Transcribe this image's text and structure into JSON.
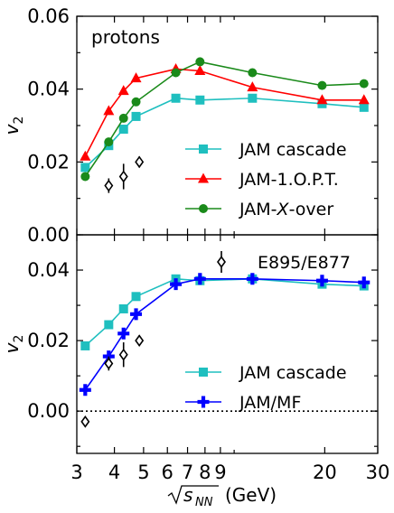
{
  "chart_data": {
    "type": "line",
    "x_scale": "log",
    "xlim": [
      3,
      30
    ],
    "x_ticks": [
      3,
      4,
      5,
      6,
      7,
      8,
      9,
      20,
      30
    ],
    "x_tick_labels": [
      "3",
      "4",
      "5",
      "6",
      "7",
      "8",
      "9",
      "20",
      "30"
    ],
    "xlabel": "(GeV)",
    "xlabel_symbol": "sNN",
    "panels": [
      {
        "id": "top",
        "label": "protons",
        "ylabel": "v2",
        "ylim": [
          0.0,
          0.06
        ],
        "y_ticks": [
          0.0,
          0.02,
          0.04,
          0.06
        ],
        "y_tick_labels": [
          "0.00",
          "0.02",
          "0.04",
          "0.06"
        ],
        "legend": "right",
        "series": [
          {
            "name": "JAM cascade",
            "marker": "square",
            "color": "#1fbfbf",
            "x": [
              3.2,
              3.83,
              4.29,
              4.72,
              6.4,
              7.7,
              11.5,
              19.6,
              27
            ],
            "y": [
              0.0185,
              0.0245,
              0.029,
              0.0325,
              0.0375,
              0.037,
              0.0375,
              0.036,
              0.035
            ]
          },
          {
            "name": "JAM-1.O.P.T.",
            "marker": "triangle",
            "color": "#ff0000",
            "x": [
              3.2,
              3.83,
              4.29,
              4.72,
              6.4,
              7.7,
              11.5,
              19.6,
              27
            ],
            "y": [
              0.0215,
              0.034,
              0.0395,
              0.043,
              0.0455,
              0.045,
              0.0405,
              0.037,
              0.037
            ]
          },
          {
            "name": "JAM-X-over",
            "marker": "circle",
            "color": "#1a8a1a",
            "x": [
              3.2,
              3.83,
              4.29,
              4.72,
              6.4,
              7.7,
              11.5,
              19.6,
              27
            ],
            "y": [
              0.016,
              0.0255,
              0.032,
              0.0365,
              0.0445,
              0.0475,
              0.0445,
              0.041,
              0.0415
            ]
          },
          {
            "name": "E895/E877",
            "marker": "open-diamond",
            "color": "#000000",
            "errorbars": true,
            "x": [
              3.83,
              4.29,
              4.84
            ],
            "y": [
              0.0135,
              0.016,
              0.02
            ],
            "err": [
              0.002,
              0.0035,
              0.0015
            ]
          }
        ]
      },
      {
        "id": "bottom",
        "label": "",
        "ylabel": "v2",
        "ylim": [
          -0.012,
          0.05
        ],
        "y_ticks": [
          0.0,
          0.02,
          0.04
        ],
        "y_tick_labels": [
          "0.00",
          "0.02",
          "0.04"
        ],
        "zero_line": true,
        "legend": "right",
        "series": [
          {
            "name": "JAM cascade",
            "marker": "square",
            "color": "#1fbfbf",
            "x": [
              3.2,
              3.83,
              4.29,
              4.72,
              6.4,
              7.7,
              11.5,
              19.6,
              27
            ],
            "y": [
              0.0185,
              0.0245,
              0.029,
              0.0325,
              0.0375,
              0.037,
              0.0375,
              0.036,
              0.0355
            ]
          },
          {
            "name": "JAM/MF",
            "marker": "plus",
            "color": "#0000ff",
            "x": [
              3.2,
              3.83,
              4.29,
              4.72,
              6.4,
              7.7,
              11.5,
              19.6,
              27
            ],
            "y": [
              0.006,
              0.0155,
              0.022,
              0.0275,
              0.036,
              0.0375,
              0.0375,
              0.037,
              0.0365
            ]
          },
          {
            "name": "E895/E877",
            "marker": "open-diamond",
            "color": "#000000",
            "errorbars": true,
            "x": [
              3.2,
              3.83,
              4.29,
              4.84
            ],
            "y": [
              -0.003,
              0.0135,
              0.016,
              0.02
            ],
            "err": [
              0.0,
              0.002,
              0.0035,
              0.0015
            ]
          }
        ]
      }
    ]
  }
}
